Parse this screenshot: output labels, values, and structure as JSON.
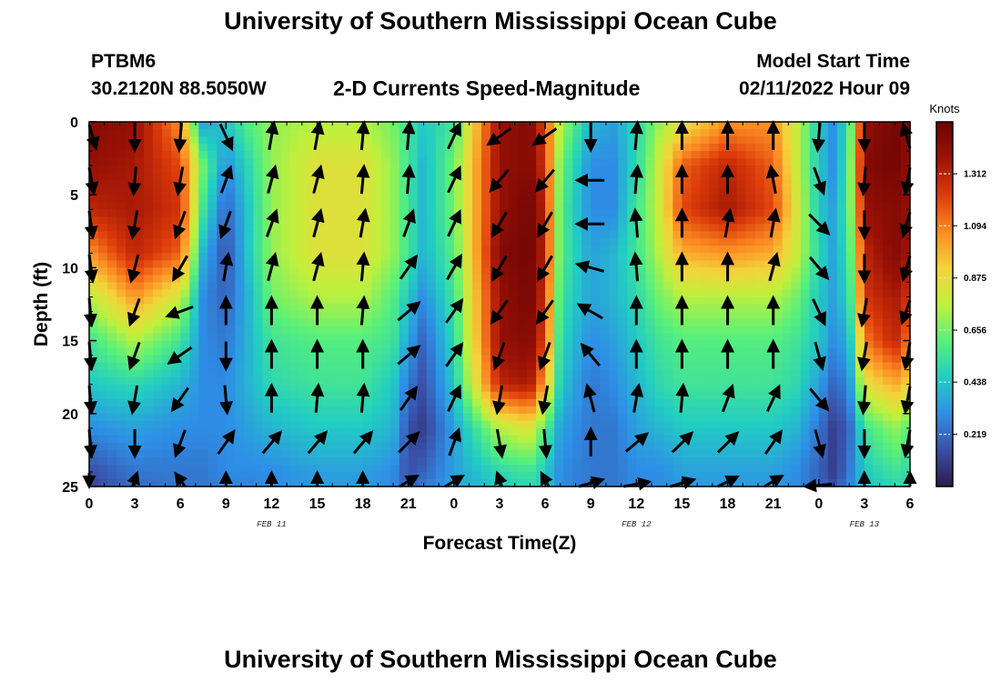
{
  "page": {
    "title_top": "University of Southern Mississippi Ocean Cube",
    "title_bottom": "University of Southern Mississippi Ocean Cube",
    "station_id": "PTBM6",
    "station_location": "30.2120N  88.5050W",
    "plot_title": "2-D Currents Speed-Magnitude",
    "model_start_label": "Model Start Time",
    "model_start_value": "02/11/2022 Hour 09"
  },
  "chart_data": {
    "type": "heatmap",
    "title": "2-D Currents Speed-Magnitude",
    "xlabel": "Forecast Time(Z)",
    "ylabel": "Depth (ft)",
    "x_tick_labels": [
      "0",
      "3",
      "6",
      "9",
      "12",
      "15",
      "18",
      "21",
      "0",
      "3",
      "6",
      "9",
      "12",
      "15",
      "18",
      "21",
      "0",
      "3",
      "6"
    ],
    "x_range_hours": [
      0,
      54
    ],
    "date_labels": [
      {
        "text": "FEB 11",
        "hour": 12
      },
      {
        "text": "FEB 12",
        "hour": 36
      },
      {
        "text": "FEB 13",
        "hour": 51
      }
    ],
    "y_ticks": [
      0,
      5,
      10,
      15,
      20,
      25
    ],
    "ylim": [
      25,
      0
    ],
    "y_inverted": true,
    "colorbar": {
      "title": "Knots",
      "tick_values": [
        1.312,
        1.094,
        0.875,
        0.656,
        0.438,
        0.219
      ],
      "range": [
        0.0,
        1.53
      ],
      "colors": [
        "#2c1b4a",
        "#3a4fa8",
        "#2e8fe6",
        "#22cdc2",
        "#58f07a",
        "#c0f03c",
        "#f5d23a",
        "#fb8a22",
        "#dc3b0a",
        "#9c1206",
        "#6a0404"
      ]
    },
    "speed_hour_knots": [
      0,
      3,
      6,
      7.5,
      9,
      10.5,
      12,
      15,
      18,
      20,
      21,
      22,
      24,
      27,
      29,
      30,
      31,
      33,
      34.5,
      36,
      37.5,
      39,
      42,
      45,
      46.5,
      48,
      49,
      50,
      51,
      53,
      54
    ],
    "speed_depth_ft": [
      0,
      3,
      6,
      9,
      12,
      15,
      18,
      21,
      24,
      25
    ],
    "speed_knots": [
      [
        1.45,
        1.4,
        1.05,
        0.35,
        0.45,
        0.6,
        0.7,
        0.75,
        0.75,
        0.65,
        0.55,
        0.45,
        0.55,
        1.4,
        1.45,
        1.2,
        0.75,
        0.4,
        0.35,
        0.5,
        0.7,
        0.85,
        1.05,
        1.05,
        0.8,
        0.45,
        0.3,
        0.55,
        1.4,
        1.5,
        1.45
      ],
      [
        1.4,
        1.35,
        1.2,
        0.65,
        0.3,
        0.5,
        0.7,
        0.85,
        0.85,
        0.7,
        0.55,
        0.4,
        0.65,
        1.4,
        1.45,
        1.25,
        0.65,
        0.3,
        0.3,
        0.5,
        0.8,
        1.15,
        1.3,
        1.15,
        0.8,
        0.45,
        0.3,
        0.6,
        1.45,
        1.5,
        1.4
      ],
      [
        1.3,
        1.35,
        1.25,
        0.55,
        0.2,
        0.45,
        0.7,
        0.85,
        0.85,
        0.7,
        0.55,
        0.4,
        0.65,
        1.4,
        1.5,
        1.3,
        0.6,
        0.3,
        0.3,
        0.55,
        0.8,
        1.2,
        1.35,
        1.2,
        0.85,
        0.45,
        0.35,
        0.6,
        1.4,
        1.45,
        1.4
      ],
      [
        1.05,
        1.3,
        1.15,
        0.4,
        0.15,
        0.45,
        0.7,
        0.85,
        0.85,
        0.7,
        0.55,
        0.4,
        0.6,
        1.45,
        1.5,
        1.3,
        0.6,
        0.35,
        0.4,
        0.55,
        0.75,
        1.0,
        1.05,
        1.0,
        0.8,
        0.5,
        0.35,
        0.55,
        1.3,
        1.45,
        1.35
      ],
      [
        0.75,
        1.05,
        0.8,
        0.3,
        0.2,
        0.4,
        0.65,
        0.75,
        0.75,
        0.6,
        0.45,
        0.3,
        0.55,
        1.4,
        1.5,
        1.25,
        0.55,
        0.35,
        0.4,
        0.5,
        0.65,
        0.75,
        0.75,
        0.75,
        0.65,
        0.45,
        0.35,
        0.5,
        1.25,
        1.35,
        1.25
      ],
      [
        0.55,
        0.75,
        0.55,
        0.3,
        0.25,
        0.4,
        0.55,
        0.6,
        0.6,
        0.55,
        0.35,
        0.2,
        0.5,
        1.4,
        1.45,
        1.2,
        0.5,
        0.3,
        0.35,
        0.45,
        0.55,
        0.6,
        0.6,
        0.6,
        0.55,
        0.45,
        0.3,
        0.4,
        1.1,
        1.3,
        1.1
      ],
      [
        0.45,
        0.5,
        0.4,
        0.3,
        0.3,
        0.4,
        0.5,
        0.55,
        0.55,
        0.45,
        0.25,
        0.15,
        0.45,
        1.3,
        1.35,
        1.0,
        0.45,
        0.25,
        0.3,
        0.4,
        0.5,
        0.55,
        0.55,
        0.55,
        0.5,
        0.35,
        0.2,
        0.3,
        0.85,
        1.0,
        0.9
      ],
      [
        0.3,
        0.35,
        0.3,
        0.3,
        0.3,
        0.35,
        0.4,
        0.45,
        0.45,
        0.4,
        0.15,
        0.1,
        0.35,
        0.75,
        0.85,
        0.6,
        0.35,
        0.25,
        0.25,
        0.35,
        0.4,
        0.45,
        0.45,
        0.45,
        0.4,
        0.25,
        0.1,
        0.2,
        0.55,
        0.7,
        0.6
      ],
      [
        0.15,
        0.25,
        0.25,
        0.25,
        0.3,
        0.3,
        0.3,
        0.35,
        0.35,
        0.3,
        0.15,
        0.2,
        0.35,
        0.5,
        0.55,
        0.45,
        0.3,
        0.25,
        0.25,
        0.3,
        0.3,
        0.35,
        0.35,
        0.35,
        0.3,
        0.2,
        0.1,
        0.25,
        0.45,
        0.55,
        0.5
      ],
      [
        0.12,
        0.22,
        0.25,
        0.25,
        0.28,
        0.28,
        0.3,
        0.33,
        0.33,
        0.3,
        0.18,
        0.25,
        0.35,
        0.45,
        0.5,
        0.45,
        0.3,
        0.25,
        0.25,
        0.3,
        0.3,
        0.33,
        0.33,
        0.33,
        0.3,
        0.22,
        0.15,
        0.28,
        0.42,
        0.5,
        0.48
      ]
    ],
    "vector_hours": [
      0,
      3,
      6,
      9,
      12,
      15,
      18,
      21,
      24,
      27,
      30,
      33,
      36,
      39,
      42,
      45,
      48,
      51,
      54
    ],
    "vector_depths_ft": [
      1,
      4,
      7,
      10,
      13,
      16,
      19,
      22,
      25
    ],
    "vector_directions_deg": [
      [
        150,
        180,
        185,
        155,
        10,
        10,
        5,
        5,
        25,
        235,
        235,
        180,
        5,
        0,
        0,
        0,
        185,
        180,
        330
      ],
      [
        160,
        185,
        190,
        20,
        15,
        15,
        5,
        5,
        25,
        220,
        220,
        270,
        5,
        0,
        0,
        350,
        160,
        185,
        200
      ],
      [
        165,
        190,
        200,
        200,
        20,
        15,
        10,
        20,
        25,
        210,
        210,
        270,
        355,
        0,
        10,
        10,
        135,
        180,
        210
      ],
      [
        165,
        195,
        210,
        10,
        15,
        15,
        5,
        35,
        30,
        210,
        210,
        285,
        355,
        0,
        0,
        15,
        140,
        180,
        210
      ],
      [
        170,
        200,
        250,
        0,
        0,
        0,
        5,
        50,
        35,
        215,
        215,
        300,
        0,
        0,
        0,
        0,
        155,
        190,
        215
      ],
      [
        170,
        200,
        235,
        180,
        0,
        0,
        0,
        50,
        35,
        200,
        200,
        320,
        0,
        0,
        0,
        0,
        165,
        190,
        200
      ],
      [
        170,
        190,
        215,
        175,
        0,
        5,
        5,
        35,
        25,
        190,
        190,
        345,
        10,
        5,
        20,
        25,
        140,
        185,
        200
      ],
      [
        170,
        180,
        200,
        35,
        40,
        40,
        40,
        45,
        20,
        170,
        175,
        0,
        50,
        45,
        45,
        35,
        165,
        180,
        200
      ],
      [
        180,
        10,
        340,
        0,
        0,
        0,
        0,
        40,
        40,
        350,
        345,
        60,
        70,
        60,
        45,
        40,
        260,
        0,
        0
      ]
    ]
  }
}
